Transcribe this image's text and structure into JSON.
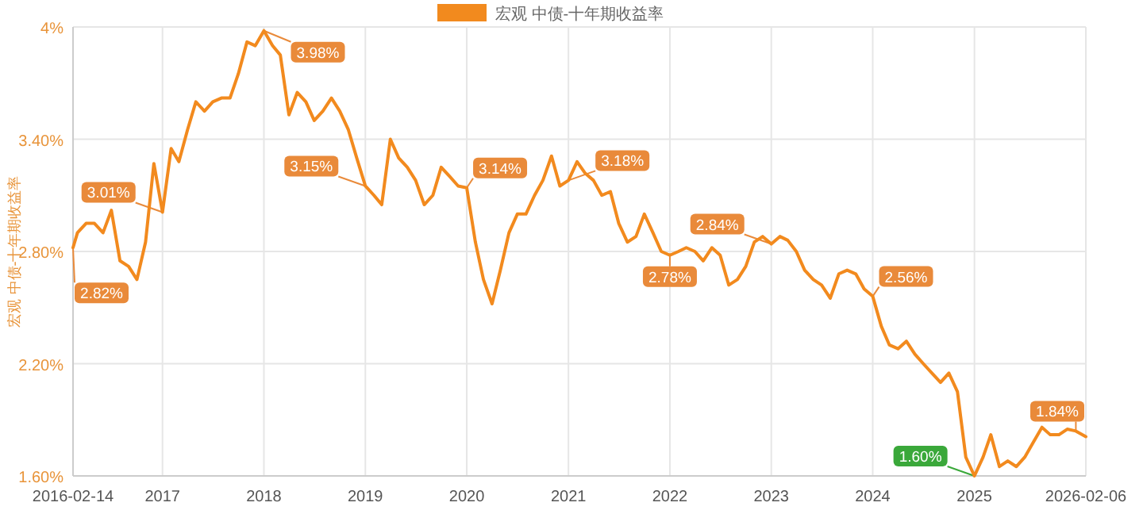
{
  "chart_data": {
    "type": "line",
    "ylabel": "宏观 中债-十年期收益率",
    "legend": "top",
    "grid": true,
    "marker": "none",
    "line_style": "solid",
    "xlim": [
      "2016-02-14",
      "2026-02-06"
    ],
    "xticks": [
      "2016-02-14",
      {
        "value": "2017-01-01",
        "label": "2017"
      },
      {
        "value": "2018-01-01",
        "label": "2018"
      },
      {
        "value": "2019-01-01",
        "label": "2019"
      },
      {
        "value": "2020-01-01",
        "label": "2020"
      },
      {
        "value": "2021-01-01",
        "label": "2021"
      },
      {
        "value": "2022-01-01",
        "label": "2022"
      },
      {
        "value": "2023-01-01",
        "label": "2023"
      },
      {
        "value": "2024-01-01",
        "label": "2024"
      },
      {
        "value": "2025-01-01",
        "label": "2025"
      },
      "2026-02-06"
    ],
    "ylim": [
      1.6,
      4
    ],
    "yticks": [
      {
        "value": 1.6,
        "label": "1.60%"
      },
      {
        "value": 2.2,
        "label": "2.20%"
      },
      {
        "value": 2.8,
        "label": "2.80%"
      },
      {
        "value": 3.4,
        "label": "3.40%"
      },
      {
        "value": 4,
        "label": "4%"
      }
    ],
    "x": [
      "2016-02-14",
      "2016-03",
      "2016-04",
      "2016-05",
      "2016-06",
      "2016-07",
      "2016-08",
      "2016-09",
      "2016-10",
      "2016-11",
      "2016-12",
      "2017-01",
      "2017-02",
      "2017-03",
      "2017-04",
      "2017-05",
      "2017-06",
      "2017-07",
      "2017-08",
      "2017-09",
      "2017-10",
      "2017-11",
      "2017-12",
      "2018-01",
      "2018-02",
      "2018-03",
      "2018-04",
      "2018-05",
      "2018-06",
      "2018-07",
      "2018-08",
      "2018-09",
      "2018-10",
      "2018-11",
      "2018-12",
      "2019-01",
      "2019-02",
      "2019-03",
      "2019-04",
      "2019-05",
      "2019-06",
      "2019-07",
      "2019-08",
      "2019-09",
      "2019-10",
      "2019-11",
      "2019-12",
      "2020-01",
      "2020-02",
      "2020-03",
      "2020-04",
      "2020-05",
      "2020-06",
      "2020-07",
      "2020-08",
      "2020-09",
      "2020-10",
      "2020-11",
      "2020-12",
      "2021-01",
      "2021-02",
      "2021-03",
      "2021-04",
      "2021-05",
      "2021-06",
      "2021-07",
      "2021-08",
      "2021-09",
      "2021-10",
      "2021-11",
      "2021-12",
      "2022-01",
      "2022-02",
      "2022-03",
      "2022-04",
      "2022-05",
      "2022-06",
      "2022-07",
      "2022-08",
      "2022-09",
      "2022-10",
      "2022-11",
      "2022-12",
      "2023-01",
      "2023-02",
      "2023-03",
      "2023-04",
      "2023-05",
      "2023-06",
      "2023-07",
      "2023-08",
      "2023-09",
      "2023-10",
      "2023-11",
      "2023-12",
      "2024-01",
      "2024-02",
      "2024-03",
      "2024-04",
      "2024-05",
      "2024-06",
      "2024-07",
      "2024-08",
      "2024-09",
      "2024-10",
      "2024-11",
      "2024-12",
      "2025-01",
      "2025-02",
      "2025-03",
      "2025-04",
      "2025-05",
      "2025-06",
      "2025-07",
      "2025-08",
      "2025-09",
      "2025-10",
      "2025-11",
      "2025-12",
      "2026-01",
      "2026-02-06"
    ],
    "series": [
      {
        "name": "宏观 中债-十年期收益率",
        "color": "#f28a1e",
        "values": [
          2.82,
          2.9,
          2.95,
          2.95,
          2.9,
          3.02,
          2.75,
          2.72,
          2.65,
          2.85,
          3.27,
          3.01,
          3.35,
          3.28,
          3.45,
          3.6,
          3.55,
          3.6,
          3.62,
          3.62,
          3.75,
          3.92,
          3.9,
          3.98,
          3.9,
          3.85,
          3.53,
          3.65,
          3.6,
          3.5,
          3.55,
          3.62,
          3.55,
          3.45,
          3.3,
          3.15,
          3.1,
          3.05,
          3.4,
          3.3,
          3.25,
          3.18,
          3.05,
          3.1,
          3.25,
          3.2,
          3.15,
          3.14,
          2.85,
          2.65,
          2.52,
          2.7,
          2.9,
          3.0,
          3.0,
          3.1,
          3.18,
          3.31,
          3.15,
          3.18,
          3.28,
          3.22,
          3.18,
          3.1,
          3.12,
          2.95,
          2.85,
          2.88,
          3.0,
          2.9,
          2.8,
          2.78,
          2.8,
          2.82,
          2.8,
          2.75,
          2.82,
          2.78,
          2.62,
          2.65,
          2.72,
          2.85,
          2.88,
          2.84,
          2.88,
          2.86,
          2.8,
          2.7,
          2.65,
          2.62,
          2.55,
          2.68,
          2.7,
          2.68,
          2.6,
          2.56,
          2.4,
          2.3,
          2.28,
          2.32,
          2.25,
          2.2,
          2.15,
          2.1,
          2.15,
          2.05,
          1.7,
          1.6,
          1.7,
          1.82,
          1.65,
          1.68,
          1.65,
          1.7,
          1.78,
          1.86,
          1.82,
          1.82,
          1.85,
          1.84,
          1.81
        ]
      }
    ],
    "annotations": [
      {
        "text": "2.82%",
        "x": "2016-02-14",
        "y": 2.82
      },
      {
        "text": "3.01%",
        "x": "2017-01-01",
        "y": 3.01
      },
      {
        "text": "3.98%",
        "x": "2018-01-01",
        "y": 3.98
      },
      {
        "text": "3.15%",
        "x": "2019-01-01",
        "y": 3.15
      },
      {
        "text": "3.14%",
        "x": "2020-01-01",
        "y": 3.14
      },
      {
        "text": "3.18%",
        "x": "2021-01-01",
        "y": 3.18
      },
      {
        "text": "2.78%",
        "x": "2022-01-01",
        "y": 2.78
      },
      {
        "text": "2.84%",
        "x": "2023-01-01",
        "y": 2.84
      },
      {
        "text": "2.56%",
        "x": "2024-01-01",
        "y": 2.56
      },
      {
        "text": "1.60%",
        "x": "2025-01-01",
        "y": 1.6
      },
      {
        "text": "1.84%",
        "x": "2026-01",
        "y": 1.84
      }
    ]
  }
}
